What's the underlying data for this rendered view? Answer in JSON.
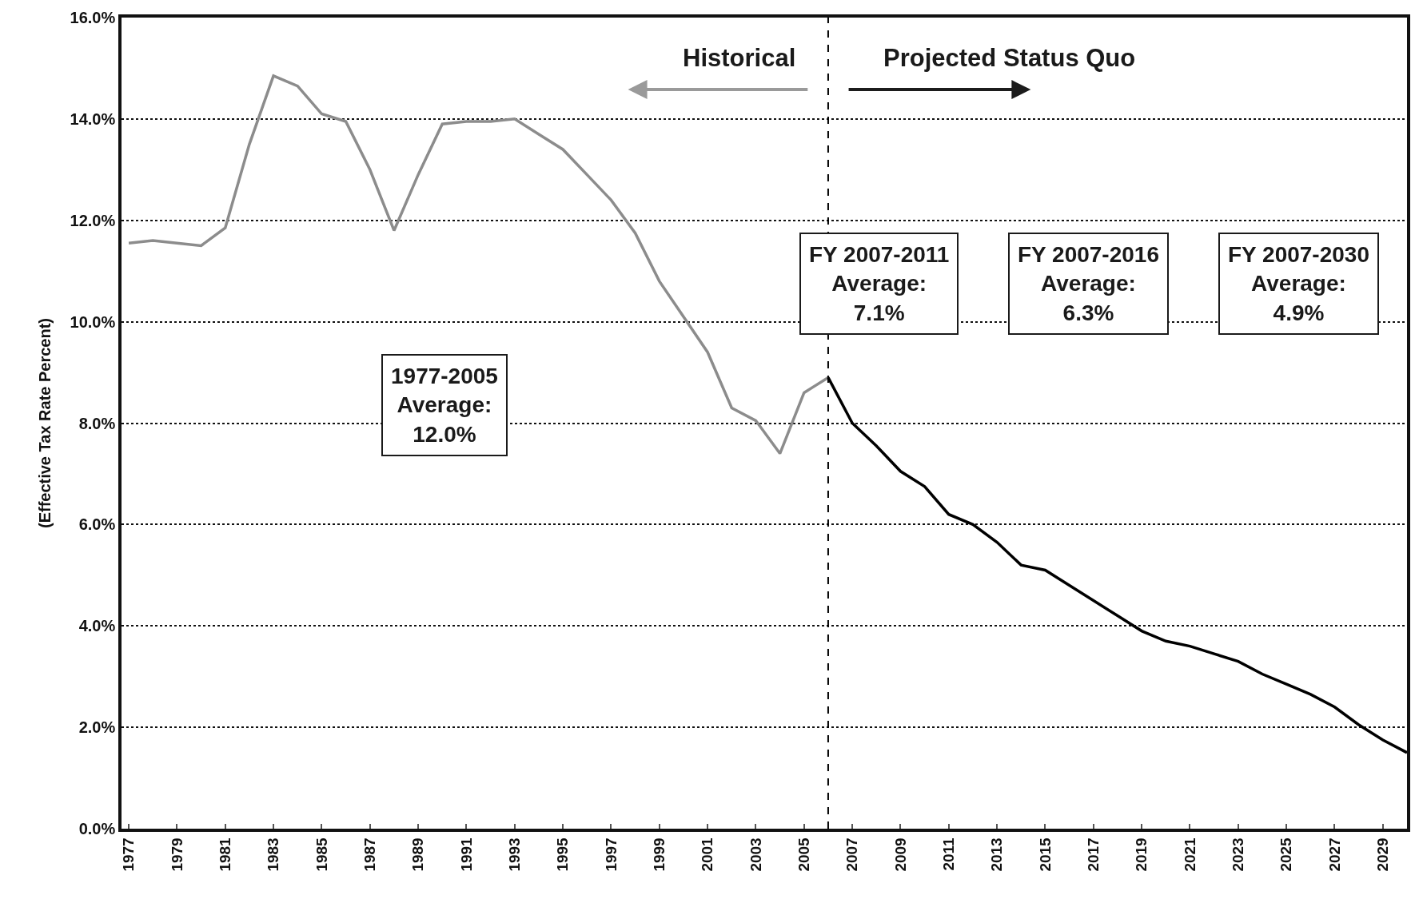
{
  "chart_data": {
    "type": "line",
    "ylabel": "(Effective Tax Rate Percent)",
    "series": [
      {
        "color": "#8c8c8c",
        "x": [
          1977,
          1978,
          1979,
          1980,
          1981,
          1982,
          1983,
          1984,
          1985,
          1986,
          1987,
          1988,
          1989,
          1990,
          1991,
          1992,
          1993,
          1994,
          1995,
          1996,
          1997,
          1998,
          1999,
          2000,
          2001,
          2002,
          2003,
          2004,
          2005,
          2006
        ],
        "values": [
          11.55,
          11.6,
          11.55,
          11.5,
          11.85,
          13.5,
          14.85,
          14.65,
          14.1,
          13.95,
          13.0,
          11.8,
          12.9,
          13.9,
          13.95,
          13.95,
          14.0,
          13.7,
          13.4,
          12.9,
          12.4,
          11.75,
          10.8,
          10.1,
          9.4,
          8.3,
          8.05,
          7.4,
          8.6,
          8.9
        ]
      },
      {
        "color": "#000000",
        "x": [
          2006,
          2007,
          2008,
          2009,
          2010,
          2011,
          2012,
          2013,
          2014,
          2015,
          2016,
          2017,
          2018,
          2019,
          2020,
          2021,
          2022,
          2023,
          2024,
          2025,
          2026,
          2027,
          2028,
          2029,
          2030
        ],
        "values": [
          8.9,
          8.0,
          7.55,
          7.05,
          6.75,
          6.2,
          6.0,
          5.65,
          5.2,
          5.1,
          4.8,
          4.5,
          4.2,
          3.9,
          3.7,
          3.6,
          3.45,
          3.3,
          3.05,
          2.85,
          2.65,
          2.4,
          2.05,
          1.75,
          1.5
        ]
      }
    ],
    "xlim": [
      1976.7,
      2030
    ],
    "xticks": [
      1977,
      1979,
      1981,
      1983,
      1985,
      1987,
      1989,
      1991,
      1993,
      1995,
      1997,
      1999,
      2001,
      2003,
      2005,
      2007,
      2009,
      2011,
      2013,
      2015,
      2017,
      2019,
      2021,
      2023,
      2025,
      2027,
      2029
    ],
    "ylim": [
      0,
      16
    ],
    "yticks": [
      {
        "value": 0,
        "label": "0.0%"
      },
      {
        "value": 2,
        "label": "2.0%"
      },
      {
        "value": 4,
        "label": "4.0%"
      },
      {
        "value": 6,
        "label": "6.0%"
      },
      {
        "value": 8,
        "label": "8.0%"
      },
      {
        "value": 10,
        "label": "10.0%"
      },
      {
        "value": 12,
        "label": "12.0%"
      },
      {
        "value": 14,
        "label": "14.0%"
      },
      {
        "value": 16,
        "label": "16.0%"
      }
    ],
    "grid": "y",
    "marker": "none",
    "line_style": "solid",
    "ref_lines": [
      {
        "axis": "x",
        "value": 2006,
        "color": "#000000",
        "line_style": "dashed"
      }
    ],
    "annotations": [
      "Historical",
      "Projected Status Quo",
      "1977-2005\nAverage:\n12.0%",
      "FY 2007-2011\nAverage:\n7.1%",
      "FY 2007-2016\nAverage:\n6.3%",
      "FY 2007-2030\nAverage:\n4.9%"
    ]
  }
}
